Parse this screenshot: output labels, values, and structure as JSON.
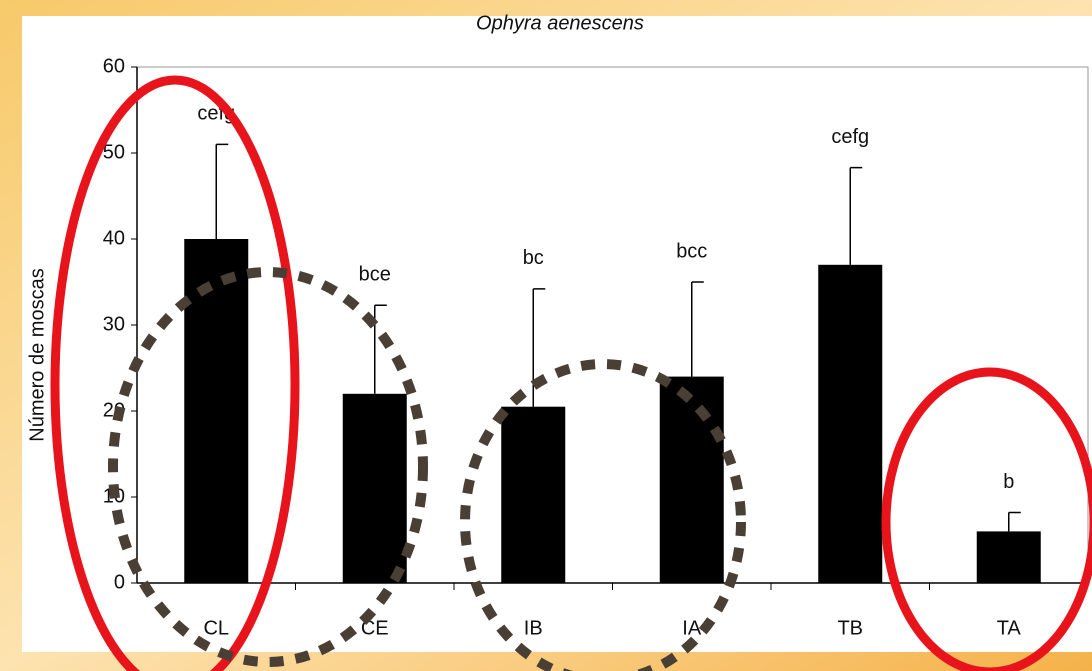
{
  "chart_data": {
    "type": "bar",
    "title": "Ophyra aenescens",
    "y_label": "Número de moscas",
    "categories": [
      "CL",
      "CE",
      "IB",
      "IA",
      "TB",
      "TA"
    ],
    "values": [
      40,
      22,
      20.5,
      24,
      37,
      6
    ],
    "errors": [
      11,
      10.3,
      13.7,
      11,
      11.3,
      2.2
    ],
    "letters": [
      "cefg",
      "bce",
      "bc",
      "bcc",
      "cefg",
      "b"
    ],
    "color": "#000000",
    "ylim": [
      0,
      60
    ],
    "yticks": [
      0,
      10,
      20,
      30,
      40,
      50,
      60
    ],
    "grid": false
  }
}
